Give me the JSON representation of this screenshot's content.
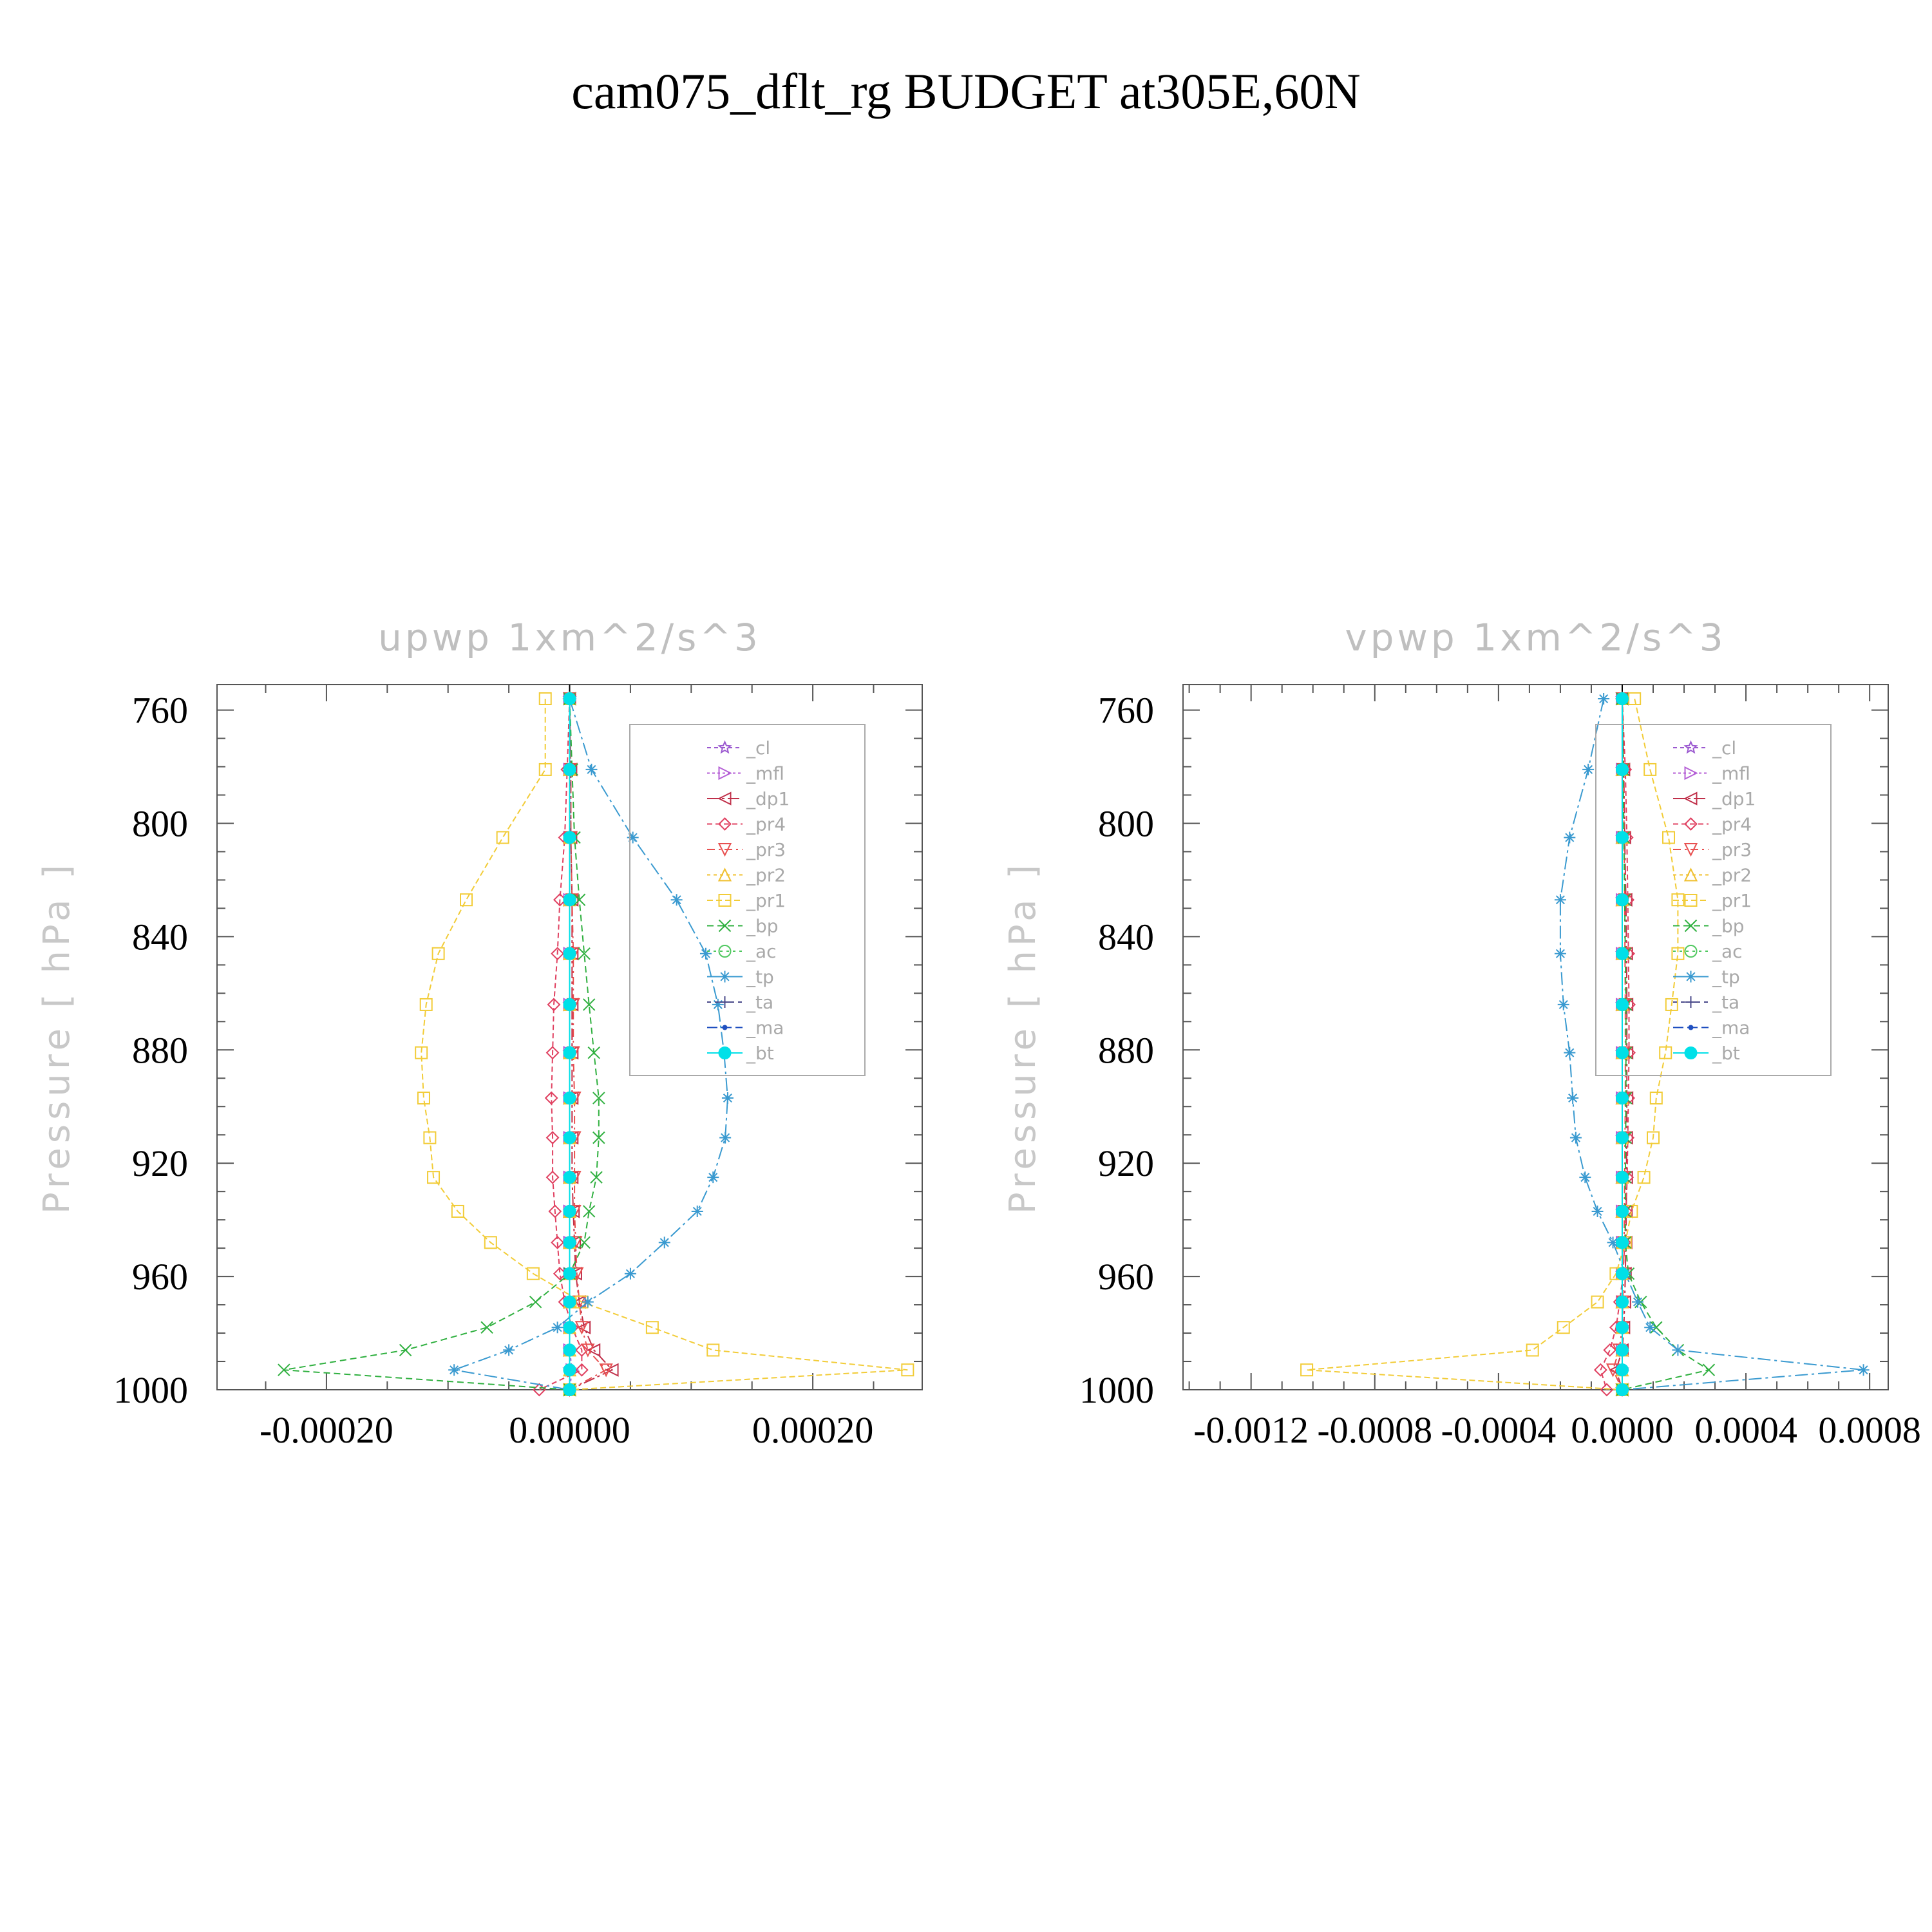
{
  "title": "cam075_dflt_rg  BUDGET at305E,60N",
  "chart_data": [
    {
      "type": "line",
      "title": "upwp    1xm^2/s^3",
      "ylabel": "Pressure  [ hPa ]",
      "xlabel": "",
      "y_reversed": true,
      "ylim": [
        1000,
        751
      ],
      "xlim": [
        -0.00029,
        0.00029
      ],
      "xticks": [
        -0.0002,
        0.0,
        0.0002
      ],
      "xtick_labels": [
        "-0.00020",
        "0.00000",
        "0.00020"
      ],
      "yticks": [
        760,
        800,
        840,
        880,
        920,
        960,
        1000
      ],
      "ytick_labels": [
        "760",
        "800",
        "840",
        "880",
        "920",
        "960",
        "1000"
      ],
      "grid": false,
      "legend_position": "top-right",
      "y": [
        756,
        781,
        805,
        827,
        846,
        864,
        881,
        897,
        911,
        925,
        937,
        948,
        959,
        969,
        978,
        986,
        993,
        1000
      ],
      "series": [
        {
          "name": "_cl",
          "color": "#9b59d0",
          "marker": "star",
          "dash": "6,5",
          "values": [
            0,
            0,
            0,
            0,
            0,
            0,
            0,
            0,
            0,
            0,
            0,
            0,
            0,
            0,
            0,
            0,
            0,
            0
          ]
        },
        {
          "name": "_mfl",
          "color": "#b55fd6",
          "marker": "tri-right",
          "dash": "4,4",
          "values": [
            0,
            0,
            0,
            0,
            0,
            0,
            0,
            0,
            0,
            0,
            0,
            0,
            0,
            0,
            0,
            0,
            2e-06,
            0
          ]
        },
        {
          "name": "_dp1",
          "color": "#c0304a",
          "marker": "tri-left",
          "dash": "18,5,4,5",
          "values": [
            0,
            1e-06,
            1e-06,
            2e-06,
            2e-06,
            2e-06,
            2e-06,
            2e-06,
            2e-06,
            2e-06,
            3e-06,
            4e-06,
            5e-06,
            8e-06,
            1.2e-05,
            2e-05,
            3.5e-05,
            0
          ]
        },
        {
          "name": "_pr4",
          "color": "#e04060",
          "marker": "diamond",
          "dash": "8,5",
          "values": [
            0,
            -2e-06,
            -4e-06,
            -8e-06,
            -1e-05,
            -1.3e-05,
            -1.4e-05,
            -1.5e-05,
            -1.4e-05,
            -1.4e-05,
            -1.2e-05,
            -1e-05,
            -8e-06,
            -4e-06,
            2e-06,
            1e-05,
            1e-05,
            -2.5e-05
          ]
        },
        {
          "name": "_pr3",
          "color": "#e85050",
          "marker": "tri-down",
          "dash": "12,6,3,6",
          "values": [
            0,
            1e-06,
            1e-06,
            2e-06,
            3e-06,
            3e-06,
            3e-06,
            4e-06,
            4e-06,
            4e-06,
            4e-06,
            5e-06,
            6e-06,
            8e-06,
            1e-05,
            1.5e-05,
            3e-05,
            0
          ]
        },
        {
          "name": "_pr2",
          "color": "#f0c030",
          "marker": "tri-up",
          "dash": "5,5",
          "values": [
            0,
            0,
            0,
            0,
            0,
            0,
            0,
            0,
            0,
            0,
            0,
            0,
            0,
            0,
            0,
            0,
            0,
            0
          ]
        },
        {
          "name": "_pr1",
          "color": "#f2cc38",
          "marker": "square",
          "dash": "9,5",
          "values": [
            -2e-05,
            -2e-05,
            -5.5e-05,
            -8.5e-05,
            -0.000108,
            -0.000118,
            -0.000122,
            -0.00012,
            -0.000115,
            -0.000112,
            -9.2e-05,
            -6.5e-05,
            -3e-05,
            1e-05,
            6.8e-05,
            0.000118,
            0.000278,
            0
          ]
        },
        {
          "name": "_bp",
          "color": "#30b040",
          "marker": "x",
          "dash": "10,6",
          "values": [
            0,
            2e-06,
            4e-06,
            8e-06,
            1.2e-05,
            1.6e-05,
            2e-05,
            2.4e-05,
            2.4e-05,
            2.2e-05,
            1.6e-05,
            1.2e-05,
            0,
            -2.8e-05,
            -6.8e-05,
            -0.000135,
            -0.000235,
            0
          ]
        },
        {
          "name": "_ac",
          "color": "#50c860",
          "marker": "circle",
          "dash": "4,6",
          "values": [
            0,
            0,
            0,
            0,
            0,
            0,
            0,
            0,
            0,
            0,
            0,
            0,
            0,
            0,
            0,
            0,
            0,
            0
          ]
        },
        {
          "name": "_tp",
          "color": "#3a9ad0",
          "marker": "asterisk",
          "dash": "20,6,4,6",
          "values": [
            0,
            1.8e-05,
            5.2e-05,
            8.8e-05,
            0.000112,
            0.000122,
            0.000127,
            0.00013,
            0.000128,
            0.000118,
            0.000105,
            7.8e-05,
            5e-05,
            1.5e-05,
            -1e-05,
            -5e-05,
            -9.5e-05,
            0
          ]
        },
        {
          "name": "_ta",
          "color": "#4a4a8a",
          "marker": "plus",
          "dash": "6,6",
          "values": [
            0,
            0,
            0,
            0,
            0,
            0,
            0,
            0,
            0,
            0,
            0,
            0,
            0,
            0,
            0,
            0,
            0,
            0
          ]
        },
        {
          "name": "_ma",
          "color": "#2050c0",
          "marker": "dot",
          "dash": "16,6",
          "values": [
            0,
            0,
            0,
            0,
            0,
            0,
            0,
            0,
            0,
            0,
            0,
            0,
            0,
            0,
            0,
            0,
            0,
            0
          ]
        },
        {
          "name": "_bt",
          "color": "#00e0e8",
          "marker": "filled-circle",
          "dash": "",
          "values": [
            0,
            0,
            0,
            0,
            0,
            0,
            0,
            0,
            0,
            0,
            0,
            0,
            0,
            0,
            0,
            0,
            0,
            0
          ]
        }
      ]
    },
    {
      "type": "line",
      "title": "vpwp    1xm^2/s^3",
      "ylabel": "Pressure  [ hPa ]",
      "xlabel": "",
      "y_reversed": true,
      "ylim": [
        1000,
        751
      ],
      "xlim": [
        -0.00142,
        0.00086
      ],
      "xticks": [
        -0.0012,
        -0.0008,
        -0.0004,
        0.0,
        0.0004,
        0.0008
      ],
      "xtick_labels": [
        "-0.0012",
        "-0.0008",
        "-0.0004",
        "0.0000",
        "0.0004",
        "0.0008"
      ],
      "yticks": [
        760,
        800,
        840,
        880,
        920,
        960,
        1000
      ],
      "ytick_labels": [
        "760",
        "800",
        "840",
        "880",
        "920",
        "960",
        "1000"
      ],
      "grid": false,
      "legend_position": "top-right",
      "y": [
        756,
        781,
        805,
        827,
        846,
        864,
        881,
        897,
        911,
        925,
        937,
        948,
        959,
        969,
        978,
        986,
        993,
        1000
      ],
      "series": [
        {
          "name": "_cl",
          "color": "#9b59d0",
          "marker": "star",
          "dash": "6,5",
          "values": [
            0,
            0,
            0,
            0,
            0,
            0,
            0,
            0,
            0,
            0,
            0,
            0,
            0,
            0,
            0,
            0,
            0,
            0
          ]
        },
        {
          "name": "_mfl",
          "color": "#b55fd6",
          "marker": "tri-right",
          "dash": "4,4",
          "values": [
            0,
            0,
            0,
            0,
            0,
            0,
            0,
            0,
            0,
            0,
            0,
            0,
            0,
            0,
            0,
            0,
            0,
            0
          ]
        },
        {
          "name": "_dp1",
          "color": "#c0304a",
          "marker": "tri-left",
          "dash": "18,5,4,5",
          "values": [
            0,
            5e-06,
            8e-06,
            1.2e-05,
            1.4e-05,
            1.5e-05,
            1.5e-05,
            1.5e-05,
            1.4e-05,
            1.4e-05,
            1.3e-05,
            1.2e-05,
            1e-05,
            8e-06,
            5e-06,
            0,
            -2e-05,
            0
          ]
        },
        {
          "name": "_pr4",
          "color": "#e04060",
          "marker": "diamond",
          "dash": "8,5",
          "values": [
            0,
            1e-05,
            1.5e-05,
            1.8e-05,
            2e-05,
            2.2e-05,
            2.2e-05,
            2e-05,
            1.8e-05,
            1.6e-05,
            1.2e-05,
            8e-06,
            3e-06,
            -8e-06,
            -2e-05,
            -4e-05,
            -7e-05,
            -5e-05
          ]
        },
        {
          "name": "_pr3",
          "color": "#e85050",
          "marker": "tri-down",
          "dash": "12,6,3,6",
          "values": [
            0,
            4e-06,
            6e-06,
            8e-06,
            9e-06,
            1e-05,
            1e-05,
            1e-05,
            9e-06,
            8e-06,
            7e-06,
            6e-06,
            4e-06,
            2e-06,
            0,
            -1e-05,
            -3e-05,
            0
          ]
        },
        {
          "name": "_pr2",
          "color": "#f0c030",
          "marker": "tri-up",
          "dash": "5,5",
          "values": [
            0,
            0,
            0,
            0,
            0,
            0,
            0,
            0,
            0,
            0,
            0,
            0,
            0,
            0,
            0,
            0,
            0,
            0
          ]
        },
        {
          "name": "_pr1",
          "color": "#f2cc38",
          "marker": "square",
          "dash": "9,5",
          "values": [
            4e-05,
            9e-05,
            0.00015,
            0.00018,
            0.00018,
            0.00016,
            0.00014,
            0.00011,
            0.0001,
            7e-05,
            3e-05,
            1e-05,
            -2e-05,
            -8e-05,
            -0.00019,
            -0.00029,
            -0.00102,
            0
          ]
        },
        {
          "name": "_bp",
          "color": "#30b040",
          "marker": "x",
          "dash": "10,6",
          "values": [
            0,
            3e-06,
            5e-06,
            8e-06,
            1e-05,
            1.2e-05,
            1.2e-05,
            1.2e-05,
            1.1e-05,
            1e-05,
            1e-05,
            1e-05,
            2e-05,
            6e-05,
            0.00011,
            0.00018,
            0.00028,
            0
          ]
        },
        {
          "name": "_ac",
          "color": "#50c860",
          "marker": "circle",
          "dash": "4,6",
          "values": [
            0,
            0,
            0,
            0,
            0,
            0,
            0,
            0,
            0,
            0,
            0,
            0,
            0,
            0,
            0,
            0,
            0,
            0
          ]
        },
        {
          "name": "_tp",
          "color": "#3a9ad0",
          "marker": "asterisk",
          "dash": "20,6,4,6",
          "values": [
            -6e-05,
            -0.00011,
            -0.00017,
            -0.0002,
            -0.0002,
            -0.00019,
            -0.00017,
            -0.00016,
            -0.00015,
            -0.00012,
            -8e-05,
            -3e-05,
            1e-05,
            5e-05,
            9e-05,
            0.00018,
            0.00078,
            0
          ]
        },
        {
          "name": "_ta",
          "color": "#4a4a8a",
          "marker": "plus",
          "dash": "6,6",
          "values": [
            0,
            0,
            0,
            0,
            0,
            0,
            0,
            0,
            0,
            0,
            0,
            0,
            0,
            0,
            0,
            0,
            0,
            0
          ]
        },
        {
          "name": "_ma",
          "color": "#2050c0",
          "marker": "dot",
          "dash": "16,6",
          "values": [
            0,
            0,
            0,
            0,
            0,
            0,
            0,
            0,
            0,
            0,
            0,
            0,
            0,
            0,
            0,
            0,
            0,
            0
          ]
        },
        {
          "name": "_bt",
          "color": "#00e0e8",
          "marker": "filled-circle",
          "dash": "",
          "values": [
            0,
            0,
            0,
            0,
            0,
            0,
            0,
            0,
            0,
            0,
            0,
            0,
            0,
            0,
            0,
            0,
            0,
            0
          ]
        }
      ]
    }
  ]
}
